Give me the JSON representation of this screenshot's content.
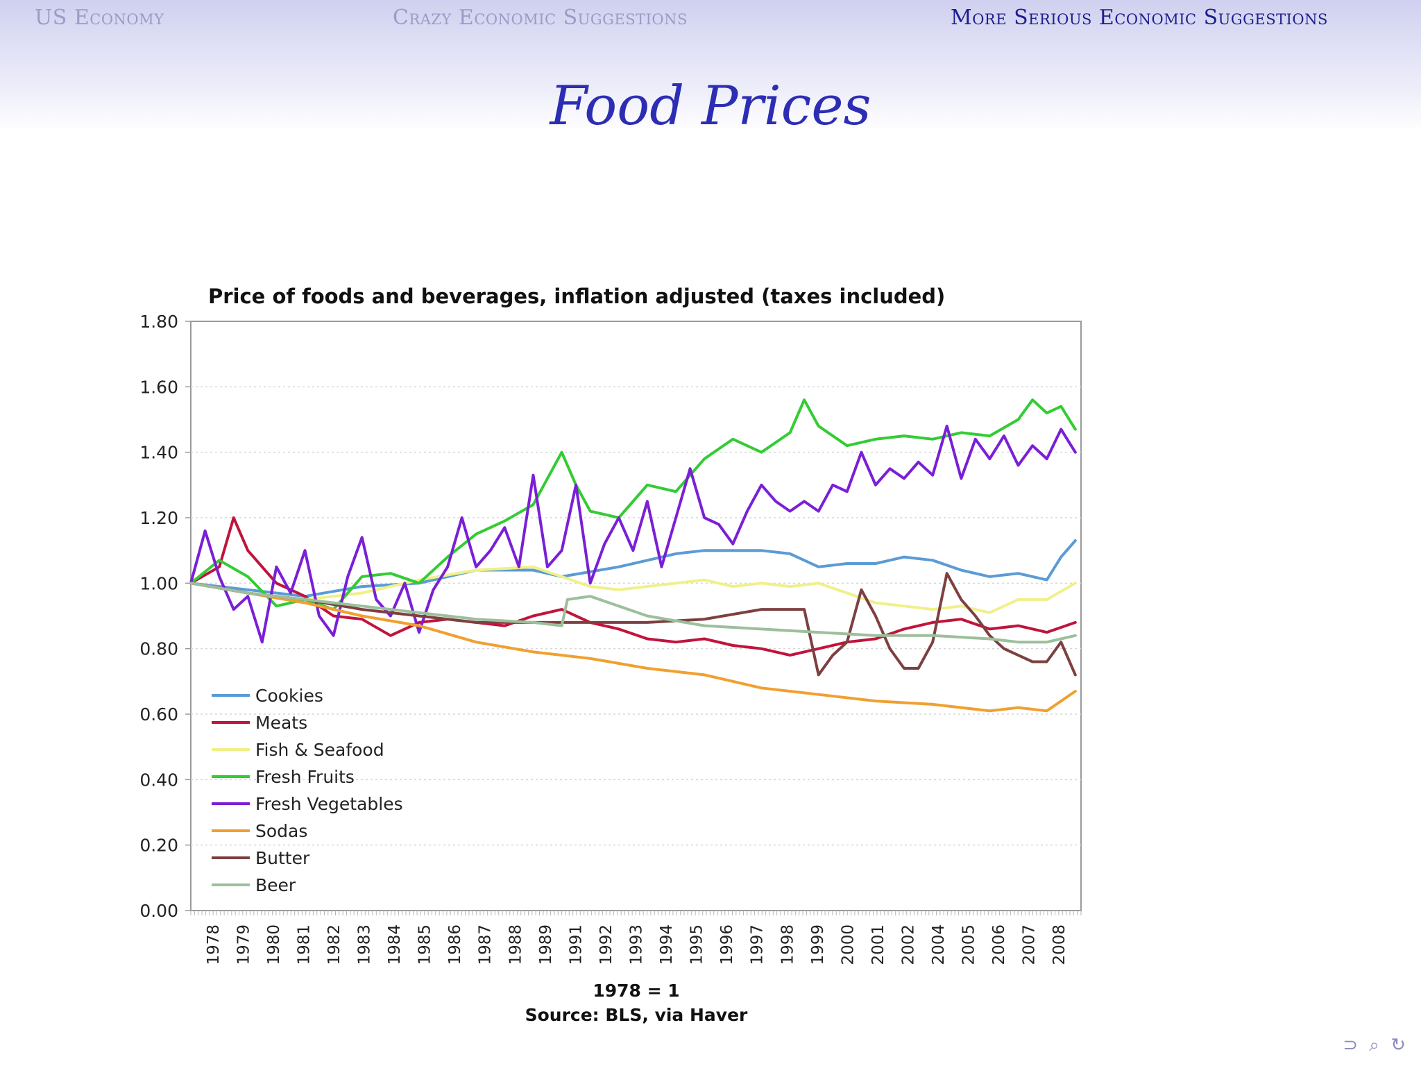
{
  "header": {
    "nav": [
      {
        "label": "US Economy",
        "active": false
      },
      {
        "label": "Crazy Economic Suggestions",
        "active": false
      },
      {
        "label": "More Serious Economic Suggestions",
        "active": true
      }
    ]
  },
  "slide": {
    "title": "Food Prices"
  },
  "footer": {
    "nav_controls_icon": "beamer-navigation-icons",
    "nav_glyphs": "⊃ ⌕ ↻"
  },
  "chart_data": {
    "type": "line",
    "title": "Price of foods and beverages, inflation adjusted (taxes included)",
    "xlabel": "1978 = 1",
    "source": "Source: BLS, via Haver",
    "ylim": [
      0,
      1.8
    ],
    "xlim": [
      1978,
      2009.2
    ],
    "yticks": [
      "0.00",
      "0.20",
      "0.40",
      "0.60",
      "0.80",
      "1.00",
      "1.20",
      "1.40",
      "1.60",
      "1.80"
    ],
    "xticks": [
      "1978",
      "1979",
      "1980",
      "1981",
      "1982",
      "1983",
      "1984",
      "1985",
      "1986",
      "1987",
      "1988",
      "1989",
      "1991",
      "1992",
      "1993",
      "1994",
      "1995",
      "1996",
      "1997",
      "1998",
      "1999",
      "2000",
      "2001",
      "2002",
      "2004",
      "2005",
      "2006",
      "2007",
      "2008"
    ],
    "grid": true,
    "legend_position": "bottom-left",
    "series": [
      {
        "name": "Cookies",
        "color": "#5b9bd5",
        "points": [
          [
            1978,
            1.0
          ],
          [
            1980,
            0.98
          ],
          [
            1982,
            0.96
          ],
          [
            1984,
            0.99
          ],
          [
            1986,
            1.0
          ],
          [
            1988,
            1.04
          ],
          [
            1990,
            1.04
          ],
          [
            1991,
            1.02
          ],
          [
            1993,
            1.05
          ],
          [
            1995,
            1.09
          ],
          [
            1996,
            1.1
          ],
          [
            1997,
            1.1
          ],
          [
            1998,
            1.1
          ],
          [
            1999,
            1.09
          ],
          [
            2000,
            1.05
          ],
          [
            2001,
            1.06
          ],
          [
            2002,
            1.06
          ],
          [
            2003,
            1.08
          ],
          [
            2004,
            1.07
          ],
          [
            2005,
            1.04
          ],
          [
            2006,
            1.02
          ],
          [
            2007,
            1.03
          ],
          [
            2008,
            1.01
          ],
          [
            2008.5,
            1.08
          ],
          [
            2009,
            1.13
          ]
        ]
      },
      {
        "name": "Meats",
        "color": "#c0143c",
        "points": [
          [
            1978,
            1.0
          ],
          [
            1979,
            1.05
          ],
          [
            1979.5,
            1.2
          ],
          [
            1980,
            1.1
          ],
          [
            1981,
            1.0
          ],
          [
            1982,
            0.96
          ],
          [
            1983,
            0.9
          ],
          [
            1984,
            0.89
          ],
          [
            1985,
            0.84
          ],
          [
            1986,
            0.88
          ],
          [
            1987,
            0.89
          ],
          [
            1988,
            0.88
          ],
          [
            1989,
            0.87
          ],
          [
            1990,
            0.9
          ],
          [
            1991,
            0.92
          ],
          [
            1992,
            0.88
          ],
          [
            1993,
            0.86
          ],
          [
            1994,
            0.83
          ],
          [
            1995,
            0.82
          ],
          [
            1996,
            0.83
          ],
          [
            1997,
            0.81
          ],
          [
            1998,
            0.8
          ],
          [
            1999,
            0.78
          ],
          [
            2000,
            0.8
          ],
          [
            2001,
            0.82
          ],
          [
            2002,
            0.83
          ],
          [
            2003,
            0.86
          ],
          [
            2004,
            0.88
          ],
          [
            2005,
            0.89
          ],
          [
            2006,
            0.86
          ],
          [
            2007,
            0.87
          ],
          [
            2008,
            0.85
          ],
          [
            2009,
            0.88
          ]
        ]
      },
      {
        "name": "Fish & Seafood",
        "color": "#f0f08a",
        "points": [
          [
            1978,
            1.0
          ],
          [
            1980,
            0.97
          ],
          [
            1982,
            0.95
          ],
          [
            1984,
            0.97
          ],
          [
            1986,
            1.01
          ],
          [
            1988,
            1.04
          ],
          [
            1990,
            1.05
          ],
          [
            1991,
            1.02
          ],
          [
            1992,
            0.99
          ],
          [
            1993,
            0.98
          ],
          [
            1995,
            1.0
          ],
          [
            1996,
            1.01
          ],
          [
            1997,
            0.99
          ],
          [
            1998,
            1.0
          ],
          [
            1999,
            0.99
          ],
          [
            2000,
            1.0
          ],
          [
            2001,
            0.97
          ],
          [
            2002,
            0.94
          ],
          [
            2003,
            0.93
          ],
          [
            2004,
            0.92
          ],
          [
            2005,
            0.93
          ],
          [
            2006,
            0.91
          ],
          [
            2007,
            0.95
          ],
          [
            2008,
            0.95
          ],
          [
            2009,
            1.0
          ]
        ]
      },
      {
        "name": "Fresh Fruits",
        "color": "#33cc33",
        "points": [
          [
            1978,
            1.0
          ],
          [
            1979,
            1.07
          ],
          [
            1980,
            1.02
          ],
          [
            1981,
            0.93
          ],
          [
            1982,
            0.95
          ],
          [
            1983,
            0.92
          ],
          [
            1984,
            1.02
          ],
          [
            1985,
            1.03
          ],
          [
            1986,
            1.0
          ],
          [
            1987,
            1.08
          ],
          [
            1988,
            1.15
          ],
          [
            1989,
            1.19
          ],
          [
            1990,
            1.24
          ],
          [
            1991,
            1.4
          ],
          [
            1991.5,
            1.3
          ],
          [
            1992,
            1.22
          ],
          [
            1993,
            1.2
          ],
          [
            1994,
            1.3
          ],
          [
            1995,
            1.28
          ],
          [
            1996,
            1.38
          ],
          [
            1997,
            1.44
          ],
          [
            1998,
            1.4
          ],
          [
            1999,
            1.46
          ],
          [
            1999.5,
            1.56
          ],
          [
            2000,
            1.48
          ],
          [
            2001,
            1.42
          ],
          [
            2002,
            1.44
          ],
          [
            2003,
            1.45
          ],
          [
            2004,
            1.44
          ],
          [
            2005,
            1.46
          ],
          [
            2006,
            1.45
          ],
          [
            2007,
            1.5
          ],
          [
            2007.5,
            1.56
          ],
          [
            2008,
            1.52
          ],
          [
            2008.5,
            1.54
          ],
          [
            2009,
            1.47
          ]
        ]
      },
      {
        "name": "Fresh Vegetables",
        "color": "#7a1fd6",
        "points": [
          [
            1978,
            1.0
          ],
          [
            1978.5,
            1.16
          ],
          [
            1979,
            1.02
          ],
          [
            1979.5,
            0.92
          ],
          [
            1980,
            0.96
          ],
          [
            1980.5,
            0.82
          ],
          [
            1981,
            1.05
          ],
          [
            1981.5,
            0.97
          ],
          [
            1982,
            1.1
          ],
          [
            1982.5,
            0.9
          ],
          [
            1983,
            0.84
          ],
          [
            1983.5,
            1.02
          ],
          [
            1984,
            1.14
          ],
          [
            1984.5,
            0.95
          ],
          [
            1985,
            0.9
          ],
          [
            1985.5,
            1.0
          ],
          [
            1986,
            0.85
          ],
          [
            1986.5,
            0.98
          ],
          [
            1987,
            1.05
          ],
          [
            1987.5,
            1.2
          ],
          [
            1988,
            1.05
          ],
          [
            1988.5,
            1.1
          ],
          [
            1989,
            1.17
          ],
          [
            1989.5,
            1.05
          ],
          [
            1990,
            1.33
          ],
          [
            1990.5,
            1.05
          ],
          [
            1991,
            1.1
          ],
          [
            1991.5,
            1.3
          ],
          [
            1992,
            1.0
          ],
          [
            1992.5,
            1.12
          ],
          [
            1993,
            1.2
          ],
          [
            1993.5,
            1.1
          ],
          [
            1994,
            1.25
          ],
          [
            1994.5,
            1.05
          ],
          [
            1995,
            1.2
          ],
          [
            1995.5,
            1.35
          ],
          [
            1996,
            1.2
          ],
          [
            1996.5,
            1.18
          ],
          [
            1997,
            1.12
          ],
          [
            1997.5,
            1.22
          ],
          [
            1998,
            1.3
          ],
          [
            1998.5,
            1.25
          ],
          [
            1999,
            1.22
          ],
          [
            1999.5,
            1.25
          ],
          [
            2000,
            1.22
          ],
          [
            2000.5,
            1.3
          ],
          [
            2001,
            1.28
          ],
          [
            2001.5,
            1.4
          ],
          [
            2002,
            1.3
          ],
          [
            2002.5,
            1.35
          ],
          [
            2003,
            1.32
          ],
          [
            2003.5,
            1.37
          ],
          [
            2004,
            1.33
          ],
          [
            2004.5,
            1.48
          ],
          [
            2005,
            1.32
          ],
          [
            2005.5,
            1.44
          ],
          [
            2006,
            1.38
          ],
          [
            2006.5,
            1.45
          ],
          [
            2007,
            1.36
          ],
          [
            2007.5,
            1.42
          ],
          [
            2008,
            1.38
          ],
          [
            2008.5,
            1.47
          ],
          [
            2009,
            1.4
          ]
        ]
      },
      {
        "name": "Sodas",
        "color": "#f0a030",
        "points": [
          [
            1978,
            1.0
          ],
          [
            1980,
            0.97
          ],
          [
            1982,
            0.94
          ],
          [
            1984,
            0.9
          ],
          [
            1986,
            0.87
          ],
          [
            1988,
            0.82
          ],
          [
            1990,
            0.79
          ],
          [
            1992,
            0.77
          ],
          [
            1994,
            0.74
          ],
          [
            1996,
            0.72
          ],
          [
            1998,
            0.68
          ],
          [
            2000,
            0.66
          ],
          [
            2002,
            0.64
          ],
          [
            2004,
            0.63
          ],
          [
            2006,
            0.61
          ],
          [
            2007,
            0.62
          ],
          [
            2008,
            0.61
          ],
          [
            2009,
            0.67
          ]
        ]
      },
      {
        "name": "Butter",
        "color": "#7d4040",
        "points": [
          [
            1978,
            1.0
          ],
          [
            1980,
            0.97
          ],
          [
            1982,
            0.95
          ],
          [
            1984,
            0.92
          ],
          [
            1986,
            0.9
          ],
          [
            1988,
            0.88
          ],
          [
            1990,
            0.88
          ],
          [
            1992,
            0.88
          ],
          [
            1994,
            0.88
          ],
          [
            1996,
            0.89
          ],
          [
            1998,
            0.92
          ],
          [
            1999.5,
            0.92
          ],
          [
            2000,
            0.72
          ],
          [
            2000.5,
            0.78
          ],
          [
            2001,
            0.82
          ],
          [
            2001.5,
            0.98
          ],
          [
            2002,
            0.9
          ],
          [
            2002.5,
            0.8
          ],
          [
            2003,
            0.74
          ],
          [
            2003.5,
            0.74
          ],
          [
            2004,
            0.82
          ],
          [
            2004.5,
            1.03
          ],
          [
            2005,
            0.95
          ],
          [
            2005.5,
            0.9
          ],
          [
            2006,
            0.84
          ],
          [
            2006.5,
            0.8
          ],
          [
            2007,
            0.78
          ],
          [
            2007.5,
            0.76
          ],
          [
            2008,
            0.76
          ],
          [
            2008.5,
            0.82
          ],
          [
            2009,
            0.72
          ]
        ]
      },
      {
        "name": "Beer",
        "color": "#9cbf9c",
        "points": [
          [
            1978,
            1.0
          ],
          [
            1980,
            0.97
          ],
          [
            1982,
            0.95
          ],
          [
            1984,
            0.93
          ],
          [
            1986,
            0.91
          ],
          [
            1988,
            0.89
          ],
          [
            1990,
            0.88
          ],
          [
            1991,
            0.87
          ],
          [
            1991.2,
            0.95
          ],
          [
            1992,
            0.96
          ],
          [
            1993,
            0.93
          ],
          [
            1994,
            0.9
          ],
          [
            1996,
            0.87
          ],
          [
            1998,
            0.86
          ],
          [
            2000,
            0.85
          ],
          [
            2002,
            0.84
          ],
          [
            2004,
            0.84
          ],
          [
            2006,
            0.83
          ],
          [
            2007,
            0.82
          ],
          [
            2008,
            0.82
          ],
          [
            2009,
            0.84
          ]
        ]
      }
    ]
  }
}
